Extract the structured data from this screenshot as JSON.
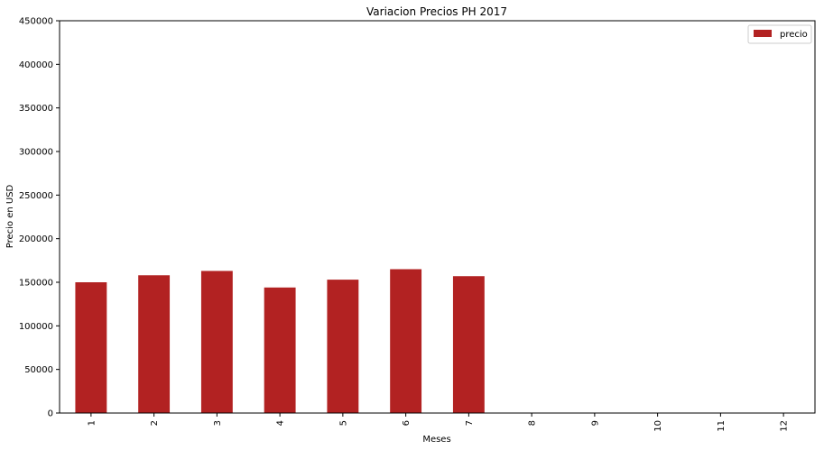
{
  "chart_data": {
    "type": "bar",
    "title": "Variacion Precios PH 2017",
    "xlabel": "Meses",
    "ylabel": "Precio en USD",
    "categories": [
      "1",
      "2",
      "3",
      "4",
      "5",
      "6",
      "7",
      "8",
      "9",
      "10",
      "11",
      "12"
    ],
    "series": [
      {
        "name": "precio",
        "color": "#b22222",
        "values": [
          150000,
          158000,
          163000,
          144000,
          153000,
          165000,
          157000,
          0,
          0,
          0,
          0,
          0
        ]
      }
    ],
    "ylim": [
      0,
      450000
    ],
    "yticks": [
      "0",
      "50000",
      "100000",
      "150000",
      "200000",
      "250000",
      "300000",
      "350000",
      "400000",
      "450000"
    ],
    "grid": false,
    "legend_position": "top-right"
  }
}
